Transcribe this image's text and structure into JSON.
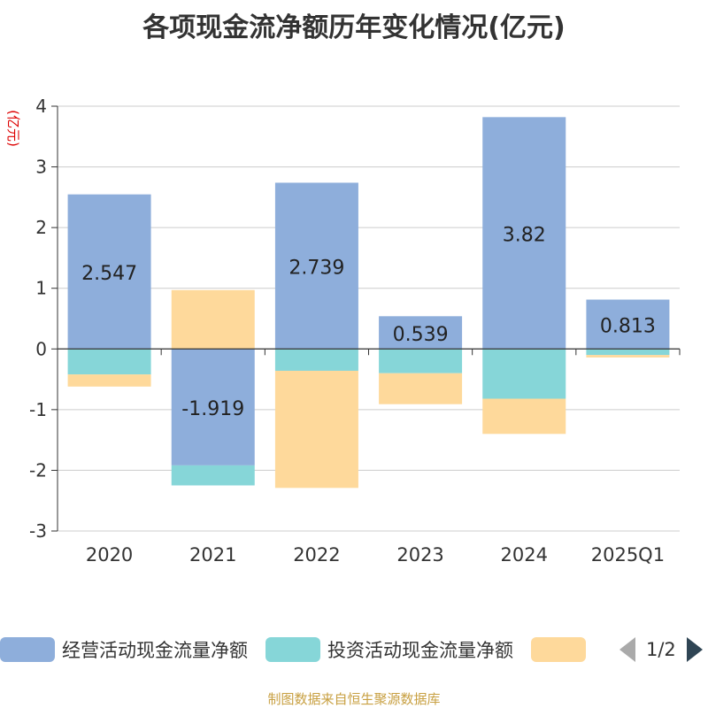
{
  "chart_data": {
    "type": "bar",
    "stacked": true,
    "title": "各项现金流净额历年变化情况(亿元)",
    "ylabel": "(亿元)",
    "xlabel": "",
    "categories": [
      "2020",
      "2021",
      "2022",
      "2023",
      "2024",
      "2025Q1"
    ],
    "ylim": [
      -3,
      4
    ],
    "yticks": [
      4,
      3,
      2,
      1,
      0,
      -1,
      -2,
      -3
    ],
    "grid": true,
    "series": [
      {
        "name": "经营活动现金流量净额",
        "color": "#8eaedb",
        "values": [
          2.547,
          -1.919,
          2.739,
          0.539,
          3.82,
          0.813
        ],
        "labels": [
          "2.547",
          "-1.919",
          "2.739",
          "0.539",
          "3.82",
          "0.813"
        ]
      },
      {
        "name": "投资活动现金流量净额",
        "color": "#86d6d8",
        "values": [
          -0.42,
          -0.33,
          -0.36,
          -0.4,
          -0.82,
          -0.1
        ],
        "labels": [
          "",
          "",
          "",
          "",
          "",
          ""
        ]
      },
      {
        "name": "",
        "color": "#fed99b",
        "values": [
          -0.2,
          0.97,
          -1.93,
          -0.51,
          -0.58,
          -0.04
        ],
        "labels": [
          "",
          "",
          "",
          "",
          "",
          ""
        ]
      }
    ],
    "legend_position": "bottom"
  },
  "legend": {
    "page_text": "1/2",
    "prev_icon": "triangle-left-icon",
    "next_icon": "triangle-right-icon"
  },
  "source_note": "制图数据来自恒生聚源数据库"
}
